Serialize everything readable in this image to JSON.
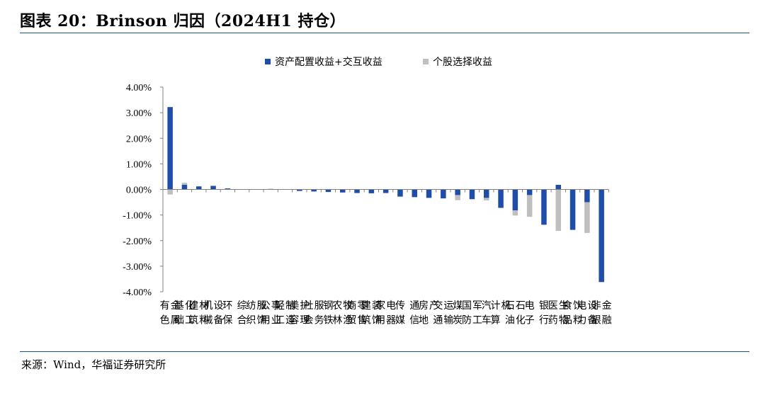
{
  "header": {
    "title": "图表 20：Brinson 归因（2024H1 持仓）"
  },
  "footer": {
    "source": "来源：Wind，华福证券研究所"
  },
  "colors": {
    "allocation": "#1f4ea8",
    "selection": "#bfbfbf",
    "rule": "#1f4e8c"
  },
  "chart_data": {
    "type": "bar",
    "stacked": true,
    "legend_position": "top",
    "grid": false,
    "y_tick_labels": [
      "4.00%",
      "3.00%",
      "2.00%",
      "1.00%",
      "0.00%",
      "-1.00%",
      "-2.00%",
      "-3.00%",
      "-4.00%"
    ],
    "ylim": [
      -4,
      4
    ],
    "categories": [
      "有色金属",
      "基础化工",
      "建筑材料",
      "机械设备",
      "环保",
      "综合",
      "纺织服饰",
      "公用事业",
      "轻工制造",
      "美容护理",
      "社会服务",
      "钢铁",
      "农林牧渔",
      "商贸零售",
      "建筑装饰",
      "家用电器",
      "传媒",
      "通信",
      "房地产",
      "交通运输",
      "煤炭",
      "国防军工",
      "汽车",
      "计算机",
      "石油石化",
      "电子",
      "银行",
      "医药生物",
      "食品饮料",
      "电力设备",
      "非银金融"
    ],
    "series": [
      {
        "name": "资产配置收益+交互收益",
        "values": [
          3.22,
          0.18,
          0.12,
          0.14,
          0.04,
          0.0,
          0.0,
          0.02,
          0.01,
          -0.06,
          -0.08,
          -0.1,
          -0.12,
          -0.14,
          -0.15,
          -0.14,
          -0.28,
          -0.3,
          -0.33,
          -0.35,
          -0.22,
          -0.38,
          -0.33,
          -0.72,
          -0.82,
          -0.22,
          -1.38,
          0.18,
          -1.58,
          -0.5,
          -3.62
        ]
      },
      {
        "name": "个股选择收益",
        "values": [
          -0.2,
          0.08,
          0.0,
          0.0,
          0.0,
          0.0,
          0.0,
          0.0,
          0.0,
          0.0,
          0.0,
          0.0,
          0.0,
          0.0,
          0.0,
          0.0,
          0.0,
          0.0,
          0.0,
          0.0,
          -0.2,
          0.0,
          -0.1,
          0.0,
          -0.2,
          -0.85,
          0.0,
          -1.62,
          0.0,
          -1.2,
          0.0
        ]
      }
    ]
  }
}
